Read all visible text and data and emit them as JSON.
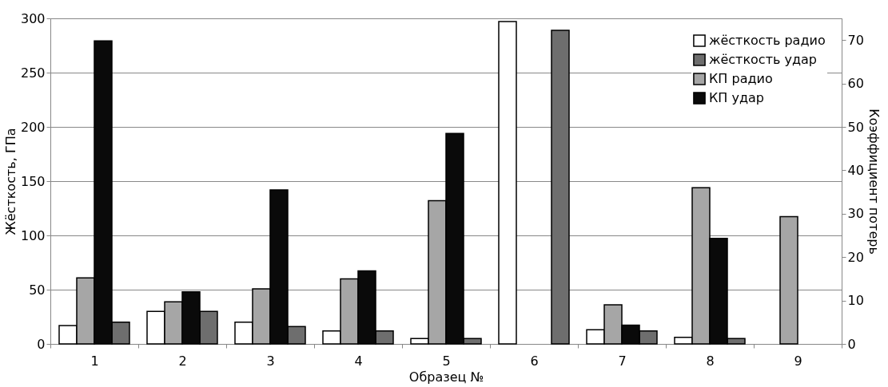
{
  "chart_data": {
    "type": "bar",
    "xlabel": "Образец №",
    "ylabel": "Жёсткость, ГПа",
    "y2label": "Коэффициент потерь",
    "categories": [
      "1",
      "2",
      "3",
      "4",
      "5",
      "6",
      "7",
      "8",
      "9"
    ],
    "ylim": [
      0,
      300
    ],
    "yticks": [
      0,
      50,
      100,
      150,
      200,
      250,
      300
    ],
    "y2lim": [
      0,
      75
    ],
    "y2ticks": [
      0,
      10,
      20,
      30,
      40,
      50,
      60,
      70
    ],
    "grid": "y",
    "legend": "top right",
    "series": [
      {
        "name": "жёсткость радио",
        "color": "#ffffff",
        "values": [
          17,
          30,
          20,
          12,
          5,
          297,
          13,
          6,
          null
        ]
      },
      {
        "name": "КП радио",
        "color": "#a6a6a6",
        "axis": "y2",
        "values": [
          15.2,
          9.7,
          12.7,
          15,
          33,
          null,
          9,
          36,
          29.3
        ]
      },
      {
        "name": "КП удар",
        "color": "#0a0a0a",
        "axis": "y2",
        "values": [
          69.8,
          12,
          35.5,
          16.8,
          48.5,
          null,
          4.3,
          24.3,
          null
        ]
      },
      {
        "name": "жёсткость удар",
        "color": "#6e6e6e",
        "values": [
          20,
          30,
          16,
          12,
          5,
          289,
          12,
          5,
          null
        ]
      }
    ]
  }
}
